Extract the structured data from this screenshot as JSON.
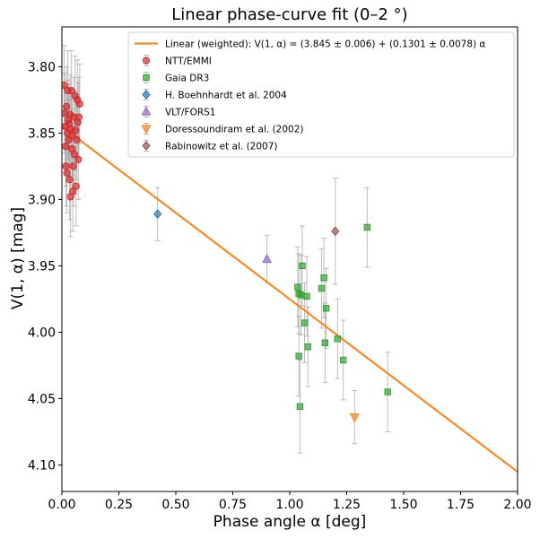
{
  "chart_data": {
    "type": "scatter",
    "title": "Linear phase-curve fit (0–2 °)",
    "xlabel": "Phase angle α [deg]",
    "ylabel": "V(1, α) [mag]",
    "xlim": [
      0,
      2.0
    ],
    "ylim": [
      4.12,
      3.77
    ],
    "y_inverted": true,
    "x_ticks": [
      0.0,
      0.25,
      0.5,
      0.75,
      1.0,
      1.25,
      1.5,
      1.75,
      2.0
    ],
    "x_tick_labels": [
      "0.00",
      "0.25",
      "0.50",
      "0.75",
      "1.00",
      "1.25",
      "1.50",
      "1.75",
      "2.00"
    ],
    "y_ticks": [
      3.8,
      3.85,
      3.9,
      3.95,
      4.0,
      4.05,
      4.1
    ],
    "y_tick_labels": [
      "3.80",
      "3.85",
      "3.90",
      "3.95",
      "4.00",
      "4.05",
      "4.10"
    ],
    "grid": false,
    "legend_position": "top-right",
    "fit": {
      "label": "Linear (weighted): V(1, α) = (3.845 ± 0.006) + (0.1301 ± 0.0078) α",
      "intercept": 3.845,
      "slope": 0.1301,
      "color": "#ff7f0e"
    },
    "series": [
      {
        "name": "NTT/EMMI",
        "marker": "circle",
        "color": "#d62728",
        "points": [
          {
            "x": 0.01,
            "y": 3.814,
            "err": 0.03
          },
          {
            "x": 0.012,
            "y": 3.835,
            "err": 0.03
          },
          {
            "x": 0.014,
            "y": 3.845,
            "err": 0.03
          },
          {
            "x": 0.016,
            "y": 3.86,
            "err": 0.03
          },
          {
            "x": 0.018,
            "y": 3.875,
            "err": 0.03
          },
          {
            "x": 0.02,
            "y": 3.83,
            "err": 0.03
          },
          {
            "x": 0.022,
            "y": 3.88,
            "err": 0.03
          },
          {
            "x": 0.024,
            "y": 3.85,
            "err": 0.03
          },
          {
            "x": 0.026,
            "y": 3.818,
            "err": 0.03
          },
          {
            "x": 0.028,
            "y": 3.84,
            "err": 0.03
          },
          {
            "x": 0.03,
            "y": 3.855,
            "err": 0.03
          },
          {
            "x": 0.032,
            "y": 3.843,
            "err": 0.03
          },
          {
            "x": 0.034,
            "y": 3.885,
            "err": 0.03
          },
          {
            "x": 0.036,
            "y": 3.836,
            "err": 0.03
          },
          {
            "x": 0.038,
            "y": 3.898,
            "err": 0.03
          },
          {
            "x": 0.04,
            "y": 3.847,
            "err": 0.03
          },
          {
            "x": 0.042,
            "y": 3.818,
            "err": 0.03
          },
          {
            "x": 0.044,
            "y": 3.862,
            "err": 0.03
          },
          {
            "x": 0.046,
            "y": 3.852,
            "err": 0.03
          },
          {
            "x": 0.048,
            "y": 3.894,
            "err": 0.03
          },
          {
            "x": 0.05,
            "y": 3.875,
            "err": 0.03
          },
          {
            "x": 0.052,
            "y": 3.838,
            "err": 0.03
          },
          {
            "x": 0.055,
            "y": 3.866,
            "err": 0.03
          },
          {
            "x": 0.058,
            "y": 3.822,
            "err": 0.03
          },
          {
            "x": 0.06,
            "y": 3.848,
            "err": 0.03
          },
          {
            "x": 0.062,
            "y": 3.89,
            "err": 0.03
          },
          {
            "x": 0.065,
            "y": 3.855,
            "err": 0.03
          },
          {
            "x": 0.068,
            "y": 3.825,
            "err": 0.03
          },
          {
            "x": 0.07,
            "y": 3.842,
            "err": 0.03
          },
          {
            "x": 0.072,
            "y": 3.87,
            "err": 0.03
          },
          {
            "x": 0.075,
            "y": 3.838,
            "err": 0.03
          },
          {
            "x": 0.078,
            "y": 3.828,
            "err": 0.03
          }
        ]
      },
      {
        "name": "Gaia DR3",
        "marker": "square",
        "color": "#2ca02c",
        "points": [
          {
            "x": 1.035,
            "y": 3.966,
            "err": 0.03
          },
          {
            "x": 1.04,
            "y": 3.971,
            "err": 0.03
          },
          {
            "x": 1.04,
            "y": 4.018,
            "err": 0.03
          },
          {
            "x": 1.045,
            "y": 4.056,
            "err": 0.035
          },
          {
            "x": 1.05,
            "y": 3.972,
            "err": 0.03
          },
          {
            "x": 1.055,
            "y": 3.95,
            "err": 0.03
          },
          {
            "x": 1.065,
            "y": 3.993,
            "err": 0.03
          },
          {
            "x": 1.075,
            "y": 3.973,
            "err": 0.03
          },
          {
            "x": 1.08,
            "y": 4.011,
            "err": 0.03
          },
          {
            "x": 1.14,
            "y": 3.967,
            "err": 0.03
          },
          {
            "x": 1.15,
            "y": 3.959,
            "err": 0.03
          },
          {
            "x": 1.155,
            "y": 4.008,
            "err": 0.03
          },
          {
            "x": 1.16,
            "y": 3.982,
            "err": 0.03
          },
          {
            "x": 1.21,
            "y": 4.005,
            "err": 0.03
          },
          {
            "x": 1.235,
            "y": 4.021,
            "err": 0.03
          },
          {
            "x": 1.34,
            "y": 3.921,
            "err": 0.03
          },
          {
            "x": 1.43,
            "y": 4.045,
            "err": 0.03
          }
        ]
      },
      {
        "name": "H. Boehnhardt et al. 2004",
        "marker": "diamond",
        "color": "#1f77b4",
        "points": [
          {
            "x": 0.42,
            "y": 3.911,
            "err": 0.02
          }
        ]
      },
      {
        "name": "VLT/FORS1",
        "marker": "triangle-up",
        "color": "#9467bd",
        "points": [
          {
            "x": 0.9,
            "y": 3.945,
            "err": 0.018
          }
        ]
      },
      {
        "name": "Doressoundiram et al. (2002)",
        "marker": "triangle-down",
        "color": "#ff7f0e",
        "points": [
          {
            "x": 1.285,
            "y": 4.064,
            "err": 0.02
          }
        ]
      },
      {
        "name": "Rabinowitz et al. (2007)",
        "marker": "diamond",
        "color": "#8c564b",
        "points": [
          {
            "x": 1.2,
            "y": 3.924,
            "err": 0.04
          }
        ]
      }
    ]
  }
}
